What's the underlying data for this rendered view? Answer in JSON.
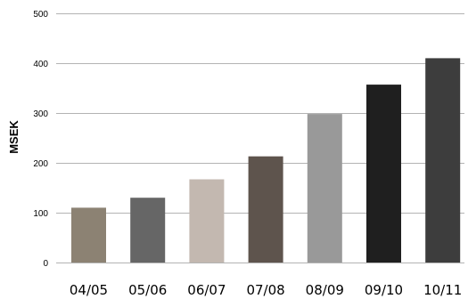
{
  "chart_data": {
    "type": "bar",
    "title": "",
    "xlabel": "",
    "ylabel": "MSEK",
    "ylim": [
      0,
      500
    ],
    "yticks": [
      0,
      100,
      200,
      300,
      400,
      500
    ],
    "grid": true,
    "categories": [
      "04/05",
      "05/06",
      "06/07",
      "07/08",
      "08/09",
      "09/10",
      "10/11"
    ],
    "values": [
      110,
      130,
      167,
      213,
      298,
      357,
      410
    ],
    "bar_colors": [
      "#8c8273",
      "#666666",
      "#c3b8b0",
      "#5e544d",
      "#999999",
      "#1f1f1f",
      "#3d3d3d"
    ],
    "grid_color": "#b3b3b3"
  }
}
